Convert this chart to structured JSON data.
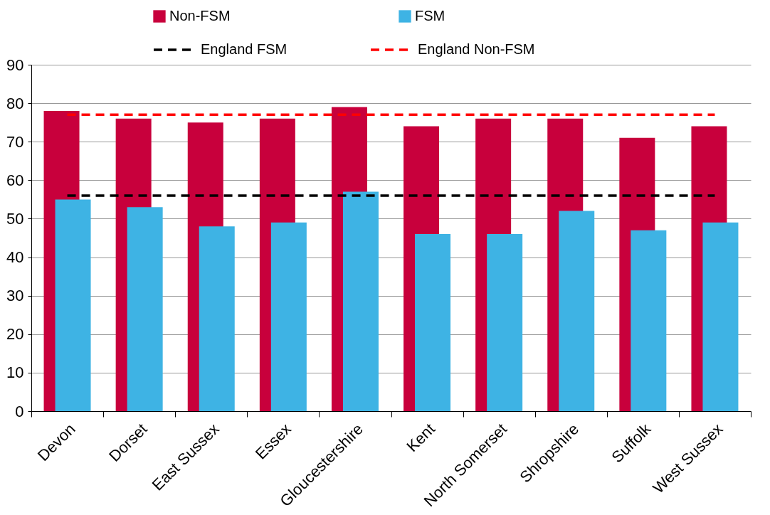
{
  "chart_data": {
    "type": "bar",
    "categories": [
      "Devon",
      "Dorset",
      "East Sussex",
      "Essex",
      "Gloucestershire",
      "Kent",
      "North Somerset",
      "Shropshire",
      "Suffolk",
      "West Sussex"
    ],
    "series": [
      {
        "name": "Non-FSM",
        "color": "#c8003c",
        "values": [
          78,
          76,
          75,
          76,
          79,
          74,
          76,
          76,
          71,
          74
        ]
      },
      {
        "name": "FSM",
        "color": "#3eb3e4",
        "values": [
          55,
          53,
          48,
          49,
          57,
          46,
          46,
          52,
          47,
          49
        ]
      },
      {
        "name": "England FSM",
        "type": "line",
        "line_style": "dashed",
        "color": "#000000",
        "values": [
          56,
          56,
          56,
          56,
          56,
          56,
          56,
          56,
          56,
          56
        ]
      },
      {
        "name": "England Non-FSM",
        "type": "line",
        "line_style": "dashed",
        "color": "#ff0000",
        "values": [
          77,
          77,
          77,
          77,
          77,
          77,
          77,
          77,
          77,
          77
        ]
      }
    ],
    "ylim": [
      0,
      90
    ],
    "yticks": [
      0,
      10,
      20,
      30,
      40,
      50,
      60,
      70,
      80,
      90
    ],
    "grid": "y",
    "legend": "top",
    "marker": "none"
  }
}
